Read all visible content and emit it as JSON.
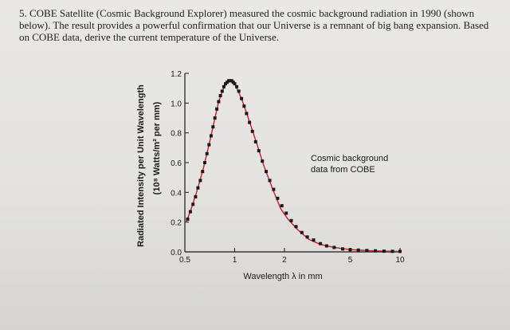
{
  "question": {
    "text": "5. COBE Satellite (Cosmic Background Explorer) measured the cosmic background radiation in 1990 (shown below). The result provides a powerful confirmation that our Universe is a remnant of big bang expansion. Based on COBE data, derive the current temperature of the Universe."
  },
  "chart_data": {
    "type": "scatter",
    "xlabel": "Wavelength λ in mm",
    "ylabel": "Radiated Intensity per Unit Wavelength",
    "ylabel_unit": "(10⁸ Watts/m² per mm)",
    "xscale": "log",
    "xlim": [
      0.5,
      10
    ],
    "ylim": [
      0,
      1.2
    ],
    "x_ticks": [
      0.5,
      1,
      2,
      5,
      10
    ],
    "x_tick_labels": [
      "0.5",
      "1",
      "2",
      "5",
      "10"
    ],
    "y_ticks": [
      0.0,
      0.2,
      0.4,
      0.6,
      0.8,
      1.0,
      1.2
    ],
    "y_tick_labels": [
      "0.0",
      "0.2",
      "0.4",
      "0.6",
      "0.8",
      "1.0",
      "1.2"
    ],
    "annotation": "Cosmic background\ndata from COBE",
    "grid": false,
    "colors": {
      "points": "#1a1a1a",
      "fit_line": "#d11a2a"
    },
    "series": [
      {
        "name": "Cosmic background data from COBE",
        "x": [
          0.52,
          0.54,
          0.56,
          0.58,
          0.6,
          0.62,
          0.64,
          0.66,
          0.68,
          0.7,
          0.72,
          0.74,
          0.76,
          0.78,
          0.8,
          0.82,
          0.84,
          0.86,
          0.88,
          0.9,
          0.92,
          0.94,
          0.96,
          0.98,
          1.0,
          1.03,
          1.06,
          1.1,
          1.14,
          1.18,
          1.23,
          1.28,
          1.34,
          1.4,
          1.47,
          1.55,
          1.63,
          1.72,
          1.82,
          1.93,
          2.05,
          2.2,
          2.35,
          2.55,
          2.75,
          3.0,
          3.3,
          3.6,
          4.0,
          4.5,
          5.0,
          5.6,
          6.3,
          7.1,
          8.0,
          9.0,
          10.0
        ],
        "y": [
          0.22,
          0.27,
          0.32,
          0.37,
          0.43,
          0.48,
          0.54,
          0.6,
          0.66,
          0.72,
          0.78,
          0.84,
          0.9,
          0.96,
          1.01,
          1.05,
          1.08,
          1.11,
          1.13,
          1.14,
          1.15,
          1.15,
          1.15,
          1.14,
          1.13,
          1.11,
          1.08,
          1.03,
          0.98,
          0.93,
          0.87,
          0.81,
          0.74,
          0.68,
          0.61,
          0.54,
          0.48,
          0.42,
          0.36,
          0.31,
          0.26,
          0.21,
          0.17,
          0.13,
          0.1,
          0.08,
          0.055,
          0.04,
          0.03,
          0.02,
          0.015,
          0.012,
          0.009,
          0.007,
          0.005,
          0.004,
          0.003
        ]
      }
    ],
    "fit_curve": {
      "x": [
        0.51,
        0.55,
        0.6,
        0.65,
        0.7,
        0.75,
        0.8,
        0.85,
        0.9,
        0.95,
        1.0,
        1.1,
        1.2,
        1.35,
        1.5,
        1.7,
        1.9,
        2.1,
        2.4,
        2.8,
        3.3,
        4.0,
        5.0,
        6.5,
        8.0,
        10.0
      ],
      "y": [
        0.2,
        0.3,
        0.43,
        0.57,
        0.72,
        0.87,
        1.01,
        1.09,
        1.14,
        1.15,
        1.13,
        1.03,
        0.91,
        0.74,
        0.58,
        0.42,
        0.29,
        0.22,
        0.15,
        0.085,
        0.05,
        0.03,
        0.015,
        0.008,
        0.005,
        0.003
      ]
    }
  }
}
